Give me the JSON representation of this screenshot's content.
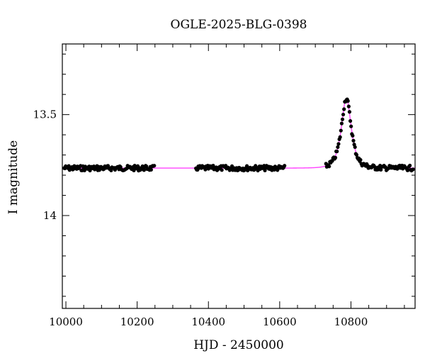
{
  "chart_data": {
    "type": "scatter",
    "title": "OGLE-2025-BLG-0398",
    "xlabel": "HJD - 2450000",
    "ylabel": "I magnitude",
    "xlim": [
      9990,
      10980
    ],
    "ylim": [
      14.46,
      13.15
    ],
    "y_inverted": true,
    "grid": false,
    "x_ticks": [
      10000,
      10200,
      10400,
      10600,
      10800
    ],
    "x_tick_labels": [
      "10000",
      "10200",
      "10400",
      "10600",
      "10800"
    ],
    "y_ticks": [
      13.5,
      14
    ],
    "y_tick_labels": [
      "13.5",
      "14"
    ],
    "baseline_mag": 13.765,
    "peak_mag": 13.42,
    "peak_time": 10787,
    "einstein_time_days": 17,
    "data_color": "#000000",
    "model_color": "#ff44ff",
    "series": [
      {
        "kind": "points",
        "observing_segments": [
          {
            "x_start": 9995,
            "x_end": 10250
          },
          {
            "x_start": 10365,
            "x_end": 10615
          },
          {
            "x_start": 10730,
            "x_end": 10975
          }
        ]
      },
      {
        "kind": "model-curve"
      }
    ]
  }
}
